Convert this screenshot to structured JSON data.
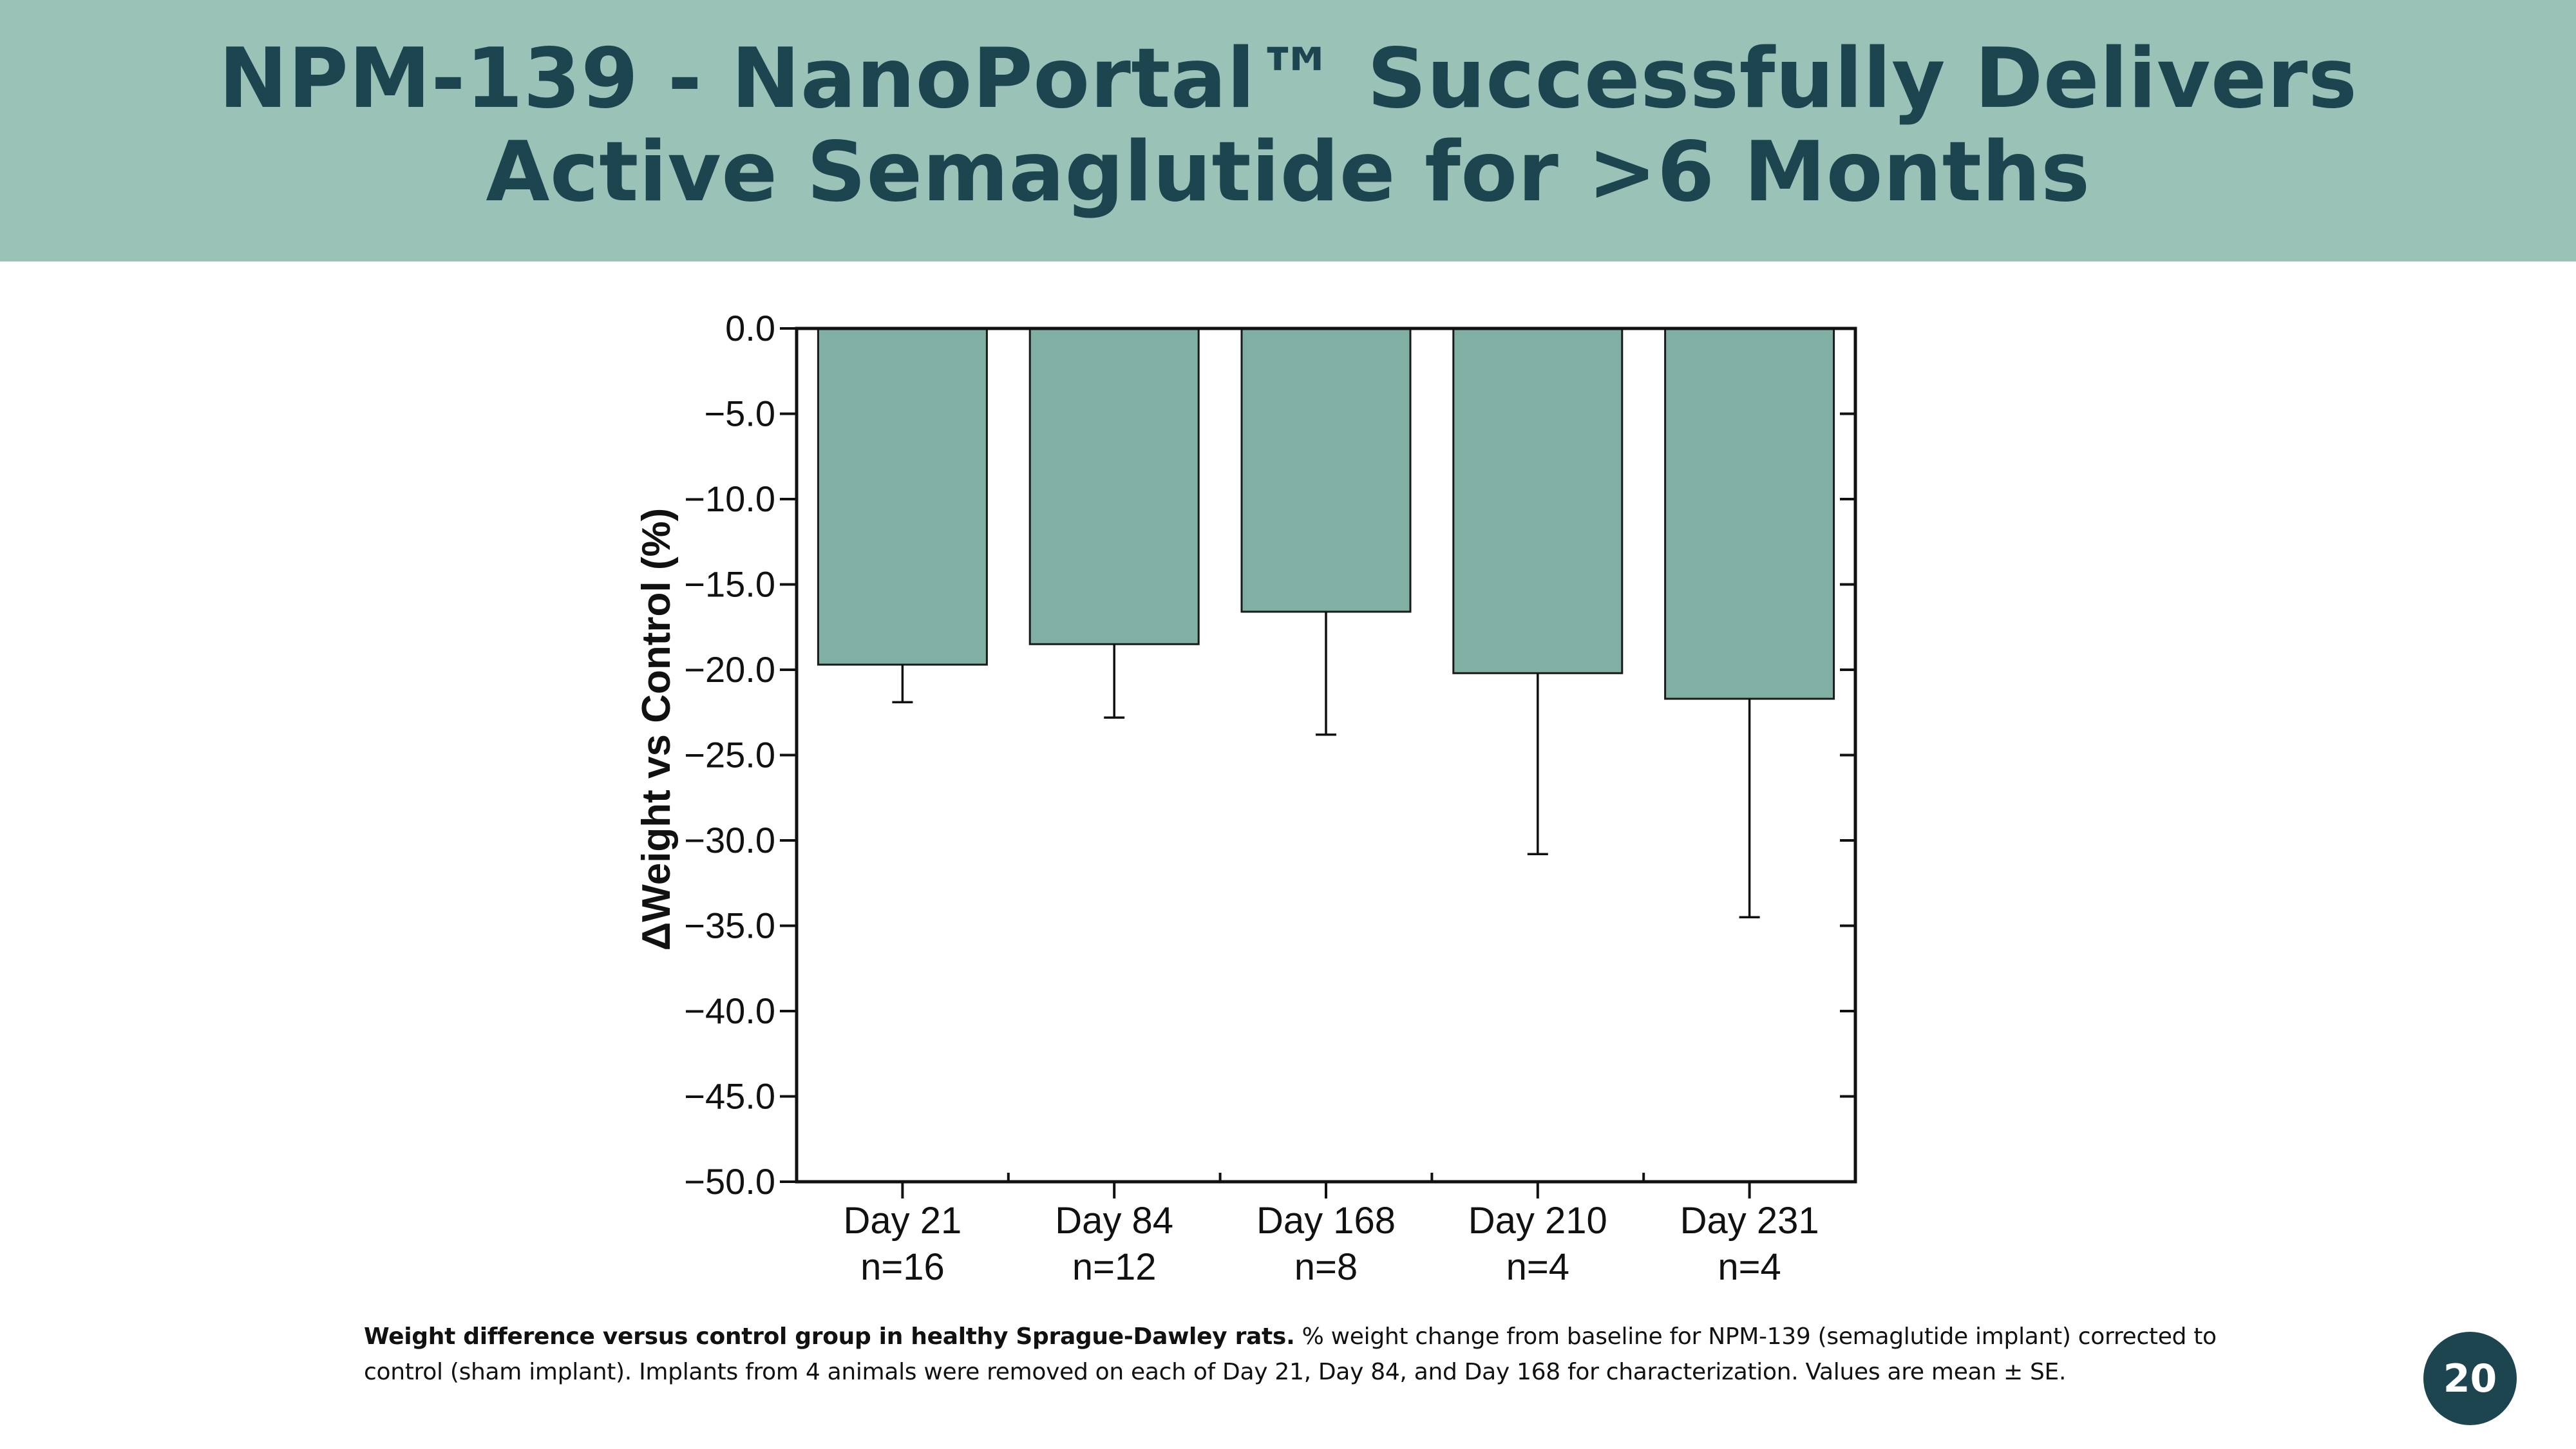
{
  "slide": {
    "title_line1": "NPM-139 - NanoPortal™ Successfully Delivers",
    "title_line2": "Active Semaglutide for >6 Months",
    "caption_bold": "Weight difference versus control group in healthy Sprague-Dawley rats.",
    "caption_rest": " % weight change from baseline for NPM-139 (semaglutide implant) corrected to control (sham implant). Implants from 4 animals were removed on each of Day 21, Day 84, and Day 168 for characterization. Values are mean ± SE.",
    "page_number": "20"
  },
  "colors": {
    "header_band": "#9bc2b7",
    "title_text": "#1d4550",
    "bar_fill": "#80afa3",
    "badge_bg": "#1d4550"
  },
  "chart_data": {
    "type": "bar",
    "title": "",
    "xlabel": "",
    "ylabel": "ΔWeight vs Control (%)",
    "categories": [
      "Day 21",
      "Day 84",
      "Day 168",
      "Day 210",
      "Day 231"
    ],
    "sample_sizes": [
      "n=16",
      "n=12",
      "n=8",
      "n=4",
      "n=4"
    ],
    "values": [
      -19.7,
      -18.5,
      -16.6,
      -20.2,
      -21.7
    ],
    "errors": [
      2.2,
      4.3,
      7.2,
      10.6,
      12.8
    ],
    "ylim": [
      -50,
      0
    ],
    "yticks": [
      0,
      -5,
      -10,
      -15,
      -20,
      -25,
      -30,
      -35,
      -40,
      -45,
      -50
    ],
    "ytick_labels": [
      "0.0",
      "−5.0",
      "−10.0",
      "−15.0",
      "−20.0",
      "−25.0",
      "−30.0",
      "−35.0",
      "−40.0",
      "−45.0",
      "−50.0"
    ],
    "grid": false,
    "legend": "none"
  }
}
